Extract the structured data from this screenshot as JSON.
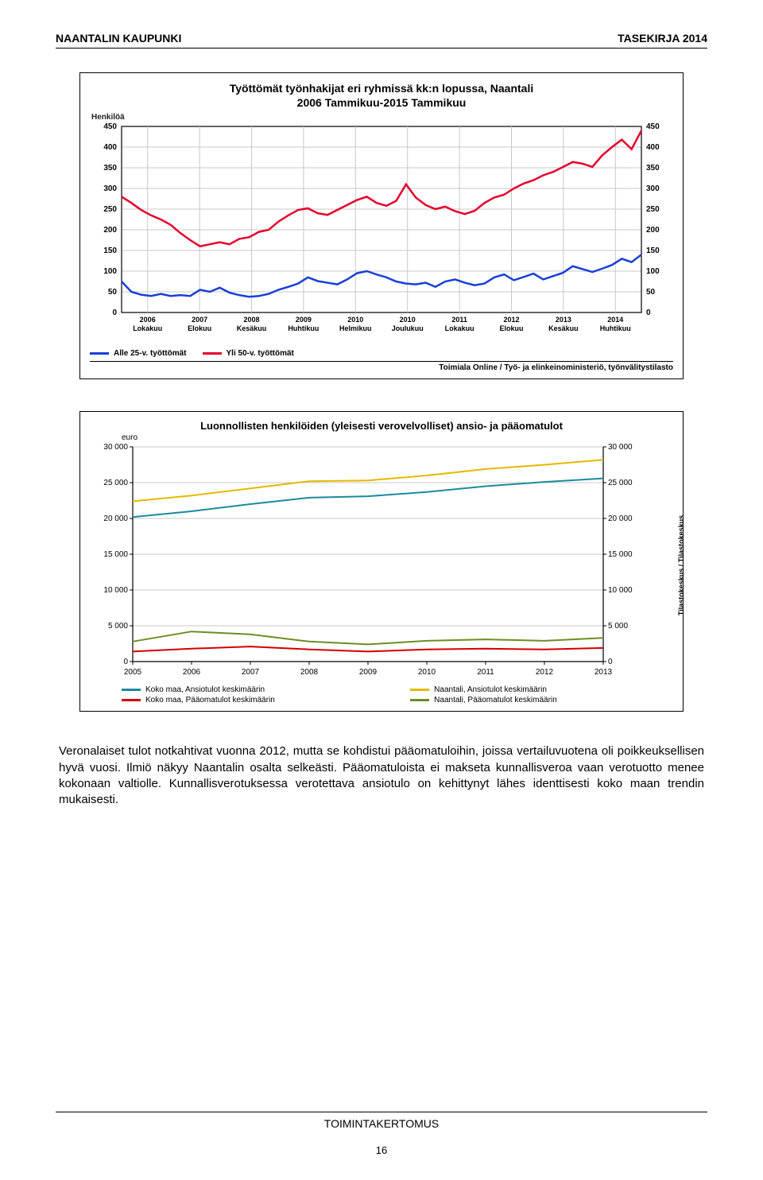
{
  "header": {
    "left": "NAANTALIN KAUPUNKI",
    "right": "TASEKIRJA 2014"
  },
  "chart1": {
    "type": "line",
    "title_line1": "Työttömät työnhakijat eri ryhmissä kk:n lopussa, Naantali",
    "title_line2": "2006 Tammikuu-2015 Tammikuu",
    "y_axis_label": "Henkilöä",
    "ylim": [
      0,
      450
    ],
    "y_ticks": [
      0,
      50,
      100,
      150,
      200,
      250,
      300,
      350,
      400,
      450
    ],
    "x_labels_top": [
      "2006",
      "2007",
      "2008",
      "2009",
      "2010",
      "2010",
      "2011",
      "2012",
      "2013",
      "2014"
    ],
    "x_labels_bottom": [
      "Lokakuu",
      "Elokuu",
      "Kesäkuu",
      "Huhtikuu",
      "Helmikuu",
      "Joulukuu",
      "Lokakuu",
      "Elokuu",
      "Kesäkuu",
      "Huhtikuu"
    ],
    "grid_color": "#c8c8c8",
    "background_color": "#ffffff",
    "series": [
      {
        "name": "Alle 25-v. työttömät",
        "color": "#1a3fd6",
        "values": [
          75,
          50,
          43,
          40,
          45,
          40,
          42,
          40,
          55,
          50,
          60,
          48,
          42,
          38,
          40,
          45,
          55,
          62,
          70,
          85,
          76,
          72,
          68,
          80,
          95,
          100,
          92,
          85,
          75,
          70,
          68,
          72,
          62,
          75,
          80,
          72,
          66,
          70,
          85,
          92,
          78,
          86,
          94,
          80,
          88,
          96,
          112,
          105,
          98,
          106,
          115,
          130,
          122,
          140
        ]
      },
      {
        "name": "Yli 50-v. työttömät",
        "color": "#e4002b",
        "values": [
          280,
          265,
          248,
          235,
          225,
          212,
          192,
          175,
          160,
          165,
          170,
          165,
          178,
          182,
          195,
          200,
          220,
          235,
          248,
          252,
          240,
          236,
          248,
          260,
          272,
          280,
          265,
          258,
          270,
          310,
          278,
          260,
          250,
          256,
          245,
          238,
          246,
          265,
          278,
          285,
          300,
          312,
          320,
          332,
          340,
          352,
          364,
          360,
          352,
          380,
          400,
          418,
          395,
          440
        ]
      }
    ],
    "legend_source": "Toimiala Online / Työ- ja elinkeinoministeriö, työnvälitystilasto"
  },
  "chart2": {
    "type": "line",
    "title": "Luonnollisten henkilöiden (yleisesti verovelvolliset) ansio- ja pääomatulot",
    "unit_label": "euro",
    "ylim": [
      0,
      30000
    ],
    "y_ticks": [
      0,
      5000,
      10000,
      15000,
      20000,
      25000,
      30000
    ],
    "y_tick_labels": [
      "0",
      "5 000",
      "10 000",
      "15 000",
      "20 000",
      "25 000",
      "30 000"
    ],
    "x_ticks": [
      2005,
      2006,
      2007,
      2008,
      2009,
      2010,
      2011,
      2012,
      2013
    ],
    "grid_color": "#c8c8c8",
    "background_color": "#ffffff",
    "side_source": "Tilastokeskus / Tilastokeskus",
    "series": [
      {
        "name": "Koko maa, Ansiotulot keskimäärin",
        "color": "#1b8a9e",
        "values": [
          20200,
          21000,
          22000,
          22900,
          23100,
          23700,
          24500,
          25100,
          25600
        ]
      },
      {
        "name": "Koko maa, Pääomatulot keskimäärin",
        "color": "#d40000",
        "values": [
          1400,
          1800,
          2100,
          1700,
          1400,
          1700,
          1800,
          1700,
          1900
        ]
      },
      {
        "name": "Naantali, Ansiotulot keskimäärin",
        "color": "#e6b800",
        "values": [
          22400,
          23200,
          24200,
          25200,
          25300,
          26000,
          26900,
          27500,
          28200
        ]
      },
      {
        "name": "Naantali, Pääomatulot keskimäärin",
        "color": "#6b8e23",
        "values": [
          2800,
          4200,
          3800,
          2800,
          2400,
          2900,
          3100,
          2900,
          3300
        ]
      }
    ]
  },
  "body_paragraph": "Veronalaiset tulot notkahtivat vuonna 2012, mutta se kohdistui pääomatuloihin, joissa vertailuvuotena oli poikkeuksellisen hyvä vuosi. Ilmiö näkyy Naantalin osalta selkeästi. Pääomatuloista ei makseta kunnallisveroa vaan verotuotto menee kokonaan valtiolle. Kunnallisverotuksessa verotettava ansiotulo on kehittynyt lähes identtisesti koko maan trendin mukaisesti.",
  "footer": {
    "label": "TOIMINTAKERTOMUS",
    "page_number": "16"
  }
}
